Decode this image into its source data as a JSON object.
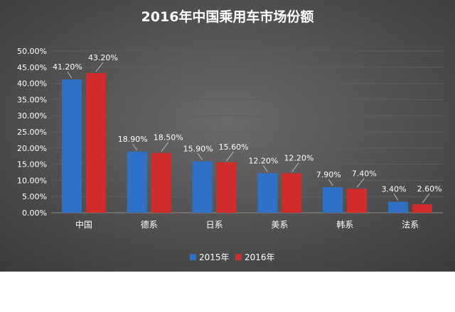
{
  "chart_data": {
    "type": "bar",
    "title": "2016年中国乘用车市场份额",
    "categories": [
      "中国",
      "德系",
      "日系",
      "美系",
      "韩系",
      "法系"
    ],
    "series": [
      {
        "name": "2015年",
        "values": [
          41.2,
          18.9,
          15.9,
          12.2,
          7.9,
          3.4
        ],
        "labels": [
          "41.20%",
          "18.90%",
          "15.90%",
          "12.20%",
          "7.90%",
          "3.40%"
        ],
        "color": "#2f71c6"
      },
      {
        "name": "2016年",
        "values": [
          43.2,
          18.5,
          15.6,
          12.2,
          7.4,
          2.6
        ],
        "labels": [
          "43.20%",
          "18.50%",
          "15.60%",
          "12.20%",
          "7.40%",
          "2.60%"
        ],
        "color": "#d12b2b"
      }
    ],
    "ylim": [
      0,
      50
    ],
    "y_ticks": [
      "0.00%",
      "5.00%",
      "10.00%",
      "15.00%",
      "20.00%",
      "25.00%",
      "30.00%",
      "35.00%",
      "40.00%",
      "45.00%",
      "50.00%"
    ],
    "grid": true,
    "legend": "bottom-center",
    "colors": {
      "background_dark": "#3a3a3a",
      "background_light": "#6a6a6a",
      "text": "#ffffff",
      "grid": "#5e5e5e"
    }
  }
}
